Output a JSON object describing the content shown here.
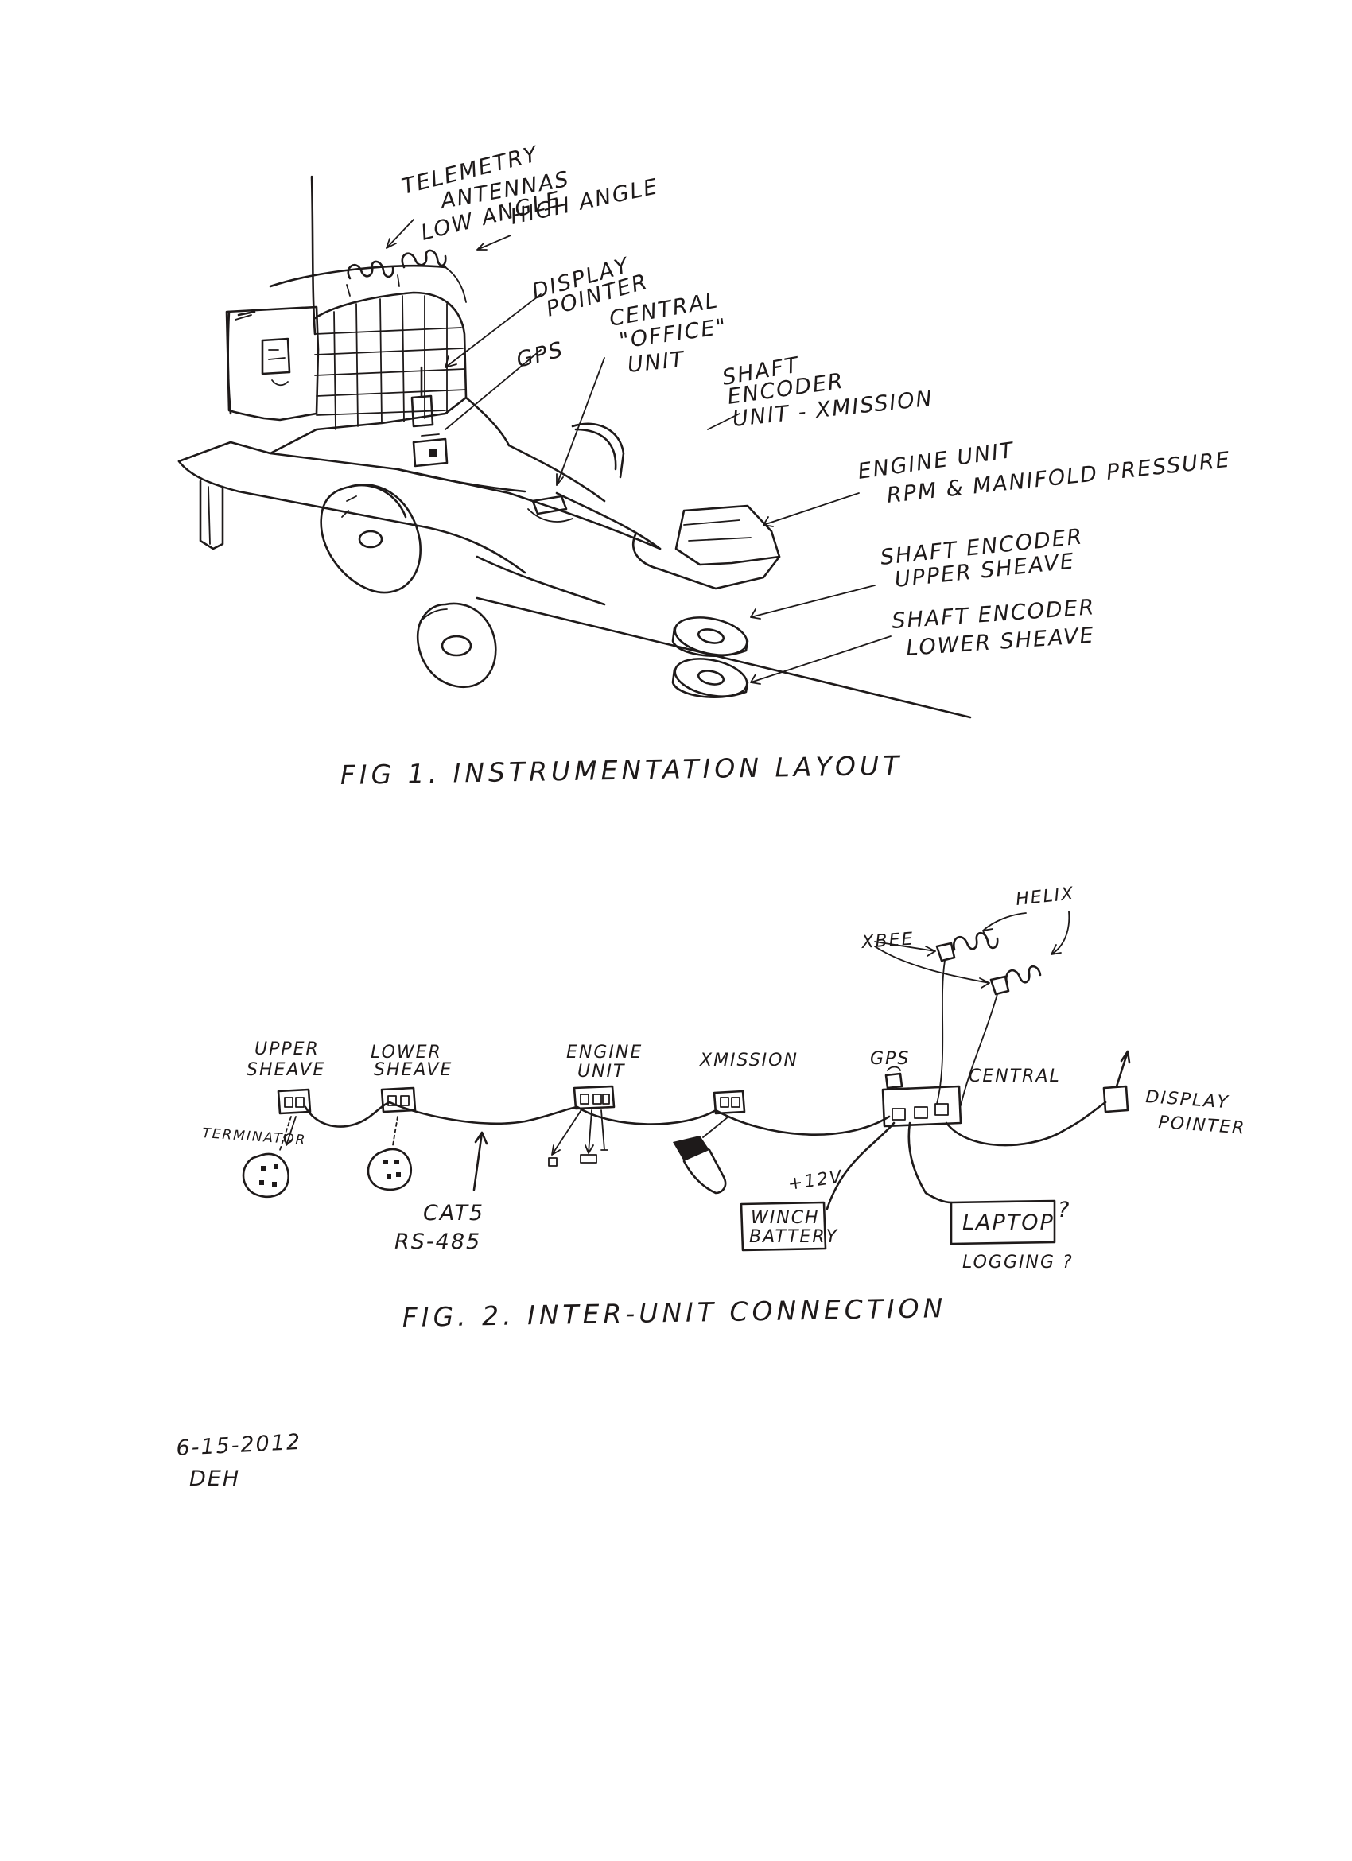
{
  "fig1": {
    "caption": "FIG 1.   INSTRUMENTATION LAYOUT",
    "labels": {
      "telemetry_1": "TELEMETRY",
      "telemetry_2": "ANTENNAS",
      "low_angle": "LOW ANGLE",
      "high_angle": "HIGH ANGLE",
      "display_1": "DISPLAY",
      "display_2": "POINTER",
      "gps": "GPS",
      "central_1": "CENTRAL",
      "central_2": "\"OFFICE\"",
      "central_3": "UNIT",
      "shaft_x_1": "SHAFT",
      "shaft_x_2": "ENCODER",
      "shaft_x_3": "UNIT - XMISSION",
      "engine_1": "ENGINE UNIT",
      "engine_2": "RPM & MANIFOLD PRESSURE",
      "upper_1": "SHAFT ENCODER",
      "upper_2": "UPPER SHEAVE",
      "lower_1": "SHAFT ENCODER",
      "lower_2": "LOWER SHEAVE"
    }
  },
  "fig2": {
    "caption": "FIG. 2.   INTER-UNIT CONNECTION",
    "labels": {
      "upper_1": "UPPER",
      "upper_2": "SHEAVE",
      "lower_1": "LOWER",
      "lower_2": "SHEAVE",
      "engine_1": "ENGINE",
      "engine_2": "UNIT",
      "xmission": "XMISSION",
      "gps": "GPS",
      "central": "CENTRAL",
      "display_1": "DISPLAY",
      "display_2": "POINTER",
      "xbee": "XBEE",
      "helix": "HELIX",
      "terminator": "TERMINATOR",
      "cat5": "CAT5",
      "rs485": "RS-485",
      "plus12v": "+12V",
      "winch_1": "WINCH",
      "winch_2": "BATTERY",
      "laptop": "LAPTOP",
      "laptop_q": "?",
      "logging": "LOGGING ?"
    }
  },
  "signature": {
    "date": "6-15-2012",
    "initials": "DEH"
  }
}
